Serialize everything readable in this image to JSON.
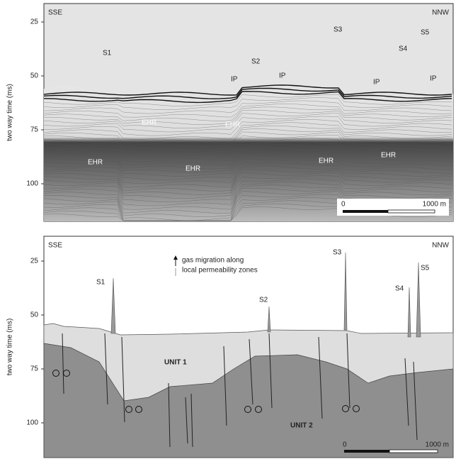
{
  "panels": [
    {
      "left": "SSE",
      "right": "NNW",
      "ylabel": "two way time (ms)",
      "yticks": [
        25,
        50,
        75,
        100
      ],
      "sources": [
        "S1",
        "S2",
        "S3",
        "S4",
        "S5"
      ],
      "ip": [
        "IP",
        "IP",
        "IP",
        "IP"
      ],
      "ehr": [
        "EHR",
        "EHR",
        "EHR",
        "EHR",
        "EHR",
        "EHR"
      ],
      "scale": [
        "0",
        "1000 m"
      ]
    },
    {
      "left": "SSE",
      "right": "NNW",
      "ylabel": "two way time (ms)",
      "yticks": [
        25,
        50,
        75,
        100
      ],
      "legend": [
        "gas migration along",
        "local permeability zones"
      ],
      "sources": [
        "S1",
        "S2",
        "S3",
        "S4",
        "S5"
      ],
      "units": [
        "UNIT 1",
        "UNIT 2"
      ],
      "scale": [
        "0",
        "1000 m"
      ]
    }
  ]
}
